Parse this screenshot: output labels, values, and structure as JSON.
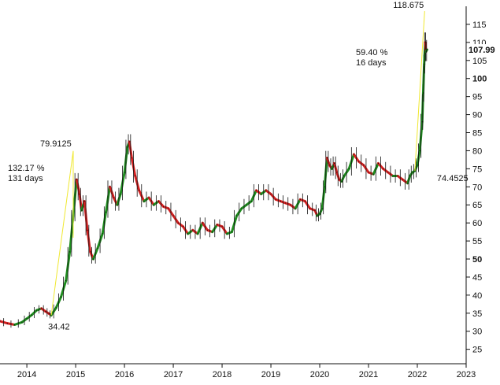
{
  "chart_data": {
    "type": "line",
    "title": "",
    "xlabel": "",
    "ylabel": "",
    "x_ticks": [
      "2014",
      "2015",
      "2016",
      "2017",
      "2018",
      "2019",
      "2020",
      "2021",
      "2022",
      "2023"
    ],
    "y_ticks": [
      "25",
      "30",
      "35",
      "40",
      "45",
      "50",
      "55",
      "60",
      "65",
      "70",
      "75",
      "80",
      "85",
      "90",
      "95",
      "100",
      "105",
      "110",
      "115"
    ],
    "y_bold_ticks": [
      "50",
      "100"
    ],
    "ylim": [
      21,
      120
    ],
    "xlim": [
      2013.45,
      2023.0
    ],
    "last_price": "107.99",
    "colors": {
      "up": "#1e8c1e",
      "down": "#d42020",
      "annotation_line": "#f0e830"
    },
    "points": [
      [
        2013.45,
        32.8
      ],
      [
        2013.6,
        32.2
      ],
      [
        2013.75,
        31.8
      ],
      [
        2013.9,
        32.5
      ],
      [
        2014.0,
        33.5
      ],
      [
        2014.1,
        34.5
      ],
      [
        2014.2,
        35.8
      ],
      [
        2014.3,
        36.3
      ],
      [
        2014.38,
        35.5
      ],
      [
        2014.45,
        34.9
      ],
      [
        2014.5,
        34.42
      ],
      [
        2014.6,
        36.5
      ],
      [
        2014.7,
        39.5
      ],
      [
        2014.8,
        44.0
      ],
      [
        2014.88,
        52.0
      ],
      [
        2014.95,
        62.0
      ],
      [
        2015.02,
        72.0
      ],
      [
        2015.08,
        68.0
      ],
      [
        2015.12,
        63.5
      ],
      [
        2015.18,
        66.0
      ],
      [
        2015.24,
        58.0
      ],
      [
        2015.3,
        52.0
      ],
      [
        2015.36,
        50.0
      ],
      [
        2015.45,
        53.0
      ],
      [
        2015.55,
        57.0
      ],
      [
        2015.62,
        63.0
      ],
      [
        2015.7,
        70.0
      ],
      [
        2015.78,
        67.0
      ],
      [
        2015.85,
        65.0
      ],
      [
        2015.92,
        68.0
      ],
      [
        2016.0,
        74.0
      ],
      [
        2016.06,
        81.0
      ],
      [
        2016.1,
        82.5
      ],
      [
        2016.15,
        78.0
      ],
      [
        2016.22,
        73.0
      ],
      [
        2016.3,
        69.0
      ],
      [
        2016.4,
        66.0
      ],
      [
        2016.5,
        67.0
      ],
      [
        2016.6,
        65.0
      ],
      [
        2016.7,
        66.0
      ],
      [
        2016.8,
        64.5
      ],
      [
        2016.9,
        64.0
      ],
      [
        2017.0,
        62.0
      ],
      [
        2017.1,
        60.0
      ],
      [
        2017.2,
        59.0
      ],
      [
        2017.3,
        57.0
      ],
      [
        2017.4,
        58.0
      ],
      [
        2017.5,
        57.0
      ],
      [
        2017.6,
        60.0
      ],
      [
        2017.7,
        58.0
      ],
      [
        2017.8,
        57.5
      ],
      [
        2017.9,
        59.5
      ],
      [
        2018.0,
        59.0
      ],
      [
        2018.1,
        57.0
      ],
      [
        2018.2,
        57.5
      ],
      [
        2018.3,
        62.0
      ],
      [
        2018.4,
        64.0
      ],
      [
        2018.5,
        65.0
      ],
      [
        2018.6,
        66.0
      ],
      [
        2018.7,
        69.0
      ],
      [
        2018.8,
        68.0
      ],
      [
        2018.9,
        69.0
      ],
      [
        2019.0,
        68.0
      ],
      [
        2019.1,
        66.5
      ],
      [
        2019.2,
        66.0
      ],
      [
        2019.3,
        65.5
      ],
      [
        2019.4,
        65.0
      ],
      [
        2019.5,
        64.0
      ],
      [
        2019.6,
        66.5
      ],
      [
        2019.7,
        66.0
      ],
      [
        2019.8,
        64.0
      ],
      [
        2019.9,
        63.5
      ],
      [
        2019.95,
        62.0
      ],
      [
        2020.0,
        62.5
      ],
      [
        2020.05,
        64.0
      ],
      [
        2020.1,
        70.0
      ],
      [
        2020.15,
        78.0
      ],
      [
        2020.2,
        76.0
      ],
      [
        2020.25,
        75.0
      ],
      [
        2020.3,
        76.5
      ],
      [
        2020.35,
        74.0
      ],
      [
        2020.4,
        72.0
      ],
      [
        2020.45,
        71.5
      ],
      [
        2020.5,
        73.0
      ],
      [
        2020.6,
        75.0
      ],
      [
        2020.7,
        79.0
      ],
      [
        2020.8,
        77.0
      ],
      [
        2020.9,
        76.0
      ],
      [
        2021.0,
        74.0
      ],
      [
        2021.1,
        73.5
      ],
      [
        2021.2,
        76.5
      ],
      [
        2021.3,
        75.0
      ],
      [
        2021.4,
        74.0
      ],
      [
        2021.5,
        73.0
      ],
      [
        2021.6,
        73.0
      ],
      [
        2021.7,
        72.0
      ],
      [
        2021.8,
        71.0
      ],
      [
        2021.85,
        73.0
      ],
      [
        2021.9,
        74.0
      ],
      [
        2021.95,
        74.45
      ],
      [
        2022.0,
        76.0
      ],
      [
        2022.05,
        80.0
      ],
      [
        2022.1,
        88.0
      ],
      [
        2022.12,
        96.0
      ],
      [
        2022.14,
        104.0
      ],
      [
        2022.16,
        110.0
      ],
      [
        2022.18,
        107.5
      ],
      [
        2022.2,
        107.99
      ]
    ],
    "annotations": [
      {
        "low_label": "34.42",
        "high_label": "79.9125",
        "pct_label": "132.17 %",
        "days_label": "131 days",
        "low_point": [
          2014.5,
          34.42
        ],
        "high_point": [
          2014.95,
          79.91
        ]
      },
      {
        "low_label": "74.4525",
        "high_label": "118.675",
        "pct_label": "59.40 %",
        "days_label": "16 days",
        "low_point": [
          2021.95,
          74.45
        ],
        "high_point": [
          2022.15,
          118.68
        ]
      }
    ]
  }
}
